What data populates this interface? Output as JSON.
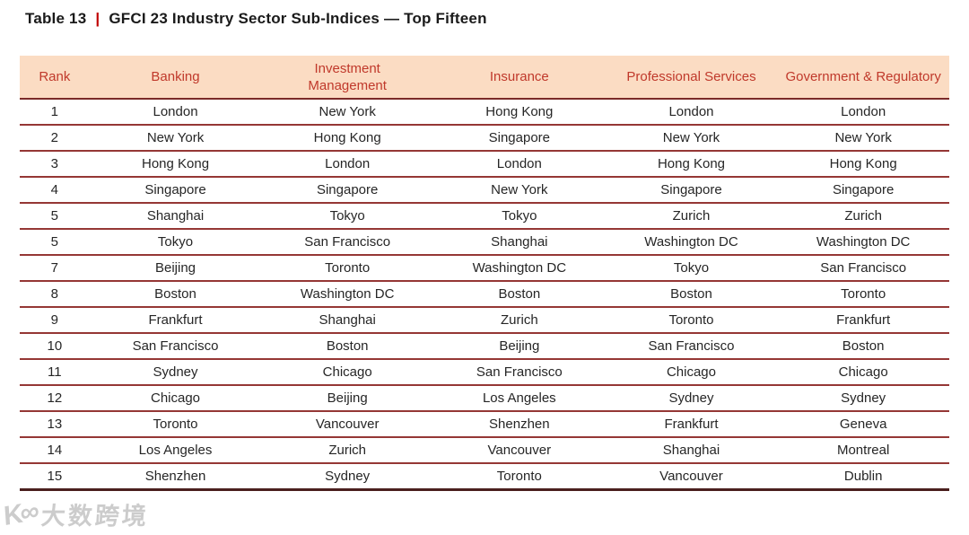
{
  "title": {
    "label": "Table 13",
    "separator": "|",
    "text": "GFCI 23 Industry Sector Sub-Indices — Top Fifteen"
  },
  "table": {
    "columns": [
      "Rank",
      "Banking",
      "Investment Management",
      "Insurance",
      "Professional Services",
      "Government & Regulatory"
    ],
    "rows": [
      [
        "1",
        "London",
        "New York",
        "Hong Kong",
        "London",
        "London"
      ],
      [
        "2",
        "New York",
        "Hong Kong",
        "Singapore",
        "New York",
        "New York"
      ],
      [
        "3",
        "Hong Kong",
        "London",
        "London",
        "Hong Kong",
        "Hong Kong"
      ],
      [
        "4",
        "Singapore",
        "Singapore",
        "New York",
        "Singapore",
        "Singapore"
      ],
      [
        "5",
        "Shanghai",
        "Tokyo",
        "Tokyo",
        "Zurich",
        "Zurich"
      ],
      [
        "5",
        "Tokyo",
        "San Francisco",
        "Shanghai",
        "Washington DC",
        "Washington DC"
      ],
      [
        "7",
        "Beijing",
        "Toronto",
        "Washington DC",
        "Tokyo",
        "San Francisco"
      ],
      [
        "8",
        "Boston",
        "Washington DC",
        "Boston",
        "Boston",
        "Toronto"
      ],
      [
        "9",
        "Frankfurt",
        "Shanghai",
        "Zurich",
        "Toronto",
        "Frankfurt"
      ],
      [
        "10",
        "San Francisco",
        "Boston",
        "Beijing",
        "San Francisco",
        "Boston"
      ],
      [
        "11",
        "Sydney",
        "Chicago",
        "San Francisco",
        "Chicago",
        "Chicago"
      ],
      [
        "12",
        "Chicago",
        "Beijing",
        "Los Angeles",
        "Sydney",
        "Sydney"
      ],
      [
        "13",
        "Toronto",
        "Vancouver",
        "Shenzhen",
        "Frankfurt",
        "Geneva"
      ],
      [
        "14",
        "Los Angeles",
        "Zurich",
        "Vancouver",
        "Shanghai",
        "Montreal"
      ],
      [
        "15",
        "Shenzhen",
        "Sydney",
        "Toronto",
        "Vancouver",
        "Dublin"
      ]
    ]
  },
  "watermark": {
    "logo": "K∞",
    "text": "大数跨境"
  },
  "colors": {
    "header_bg": "#FBDCC3",
    "header_text": "#C0392B",
    "header_line": "#7B2A28",
    "row_line": "#953735",
    "bottom_line": "#4A1F1E",
    "title_pipe": "#C00000"
  }
}
